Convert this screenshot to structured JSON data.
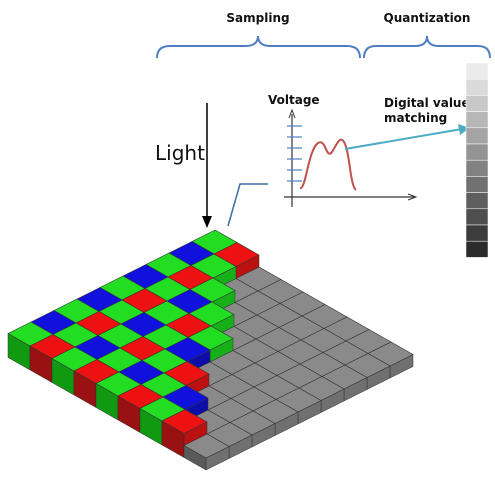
{
  "labels": {
    "sampling": "Sampling",
    "quantization": "Quantization",
    "voltage": "Voltage",
    "digital_value": [
      "Digital value",
      "matching"
    ],
    "light": "Light"
  }
}
